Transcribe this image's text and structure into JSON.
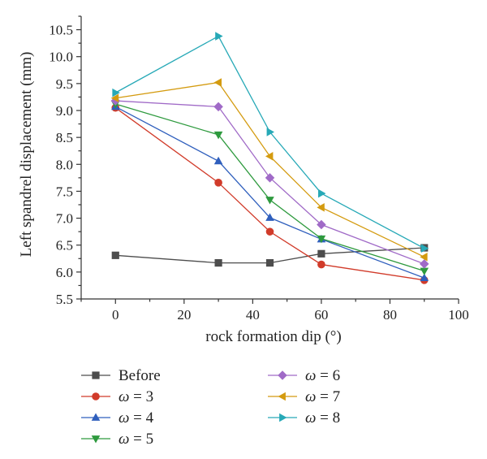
{
  "chart_data": {
    "type": "line",
    "title": "",
    "xlabel": "rock formation dip (°)",
    "ylabel": "Left spandrel displacement (mm)",
    "xlim": [
      -10,
      100
    ],
    "ylim": [
      5.5,
      10.75
    ],
    "xticks": [
      0,
      20,
      40,
      60,
      80,
      100
    ],
    "xtick_labels": [
      "0",
      "20",
      "40",
      "60",
      "80",
      "100"
    ],
    "yticks": [
      5.5,
      6.0,
      6.5,
      7.0,
      7.5,
      8.0,
      8.5,
      9.0,
      9.5,
      10.0,
      10.5
    ],
    "ytick_labels": [
      "5.5",
      "6.0",
      "6.5",
      "7.0",
      "7.5",
      "8.0",
      "8.5",
      "9.0",
      "9.5",
      "10.0",
      "10.5"
    ],
    "grid": false,
    "legend_position": "bottom",
    "x": [
      0,
      30,
      45,
      60,
      90
    ],
    "series": [
      {
        "name": "Before",
        "var": "",
        "val": "",
        "marker": "square",
        "color": "#4d4d4d",
        "values": [
          6.31,
          6.17,
          6.17,
          6.34,
          6.45
        ]
      },
      {
        "name": "ω = 3",
        "var": "ω",
        "val": " = 3",
        "marker": "circle",
        "color": "#d13b2a",
        "values": [
          9.05,
          7.66,
          6.75,
          6.14,
          5.85
        ]
      },
      {
        "name": "ω = 4",
        "var": "ω",
        "val": " = 4",
        "marker": "triangle-up",
        "color": "#2f5fbd",
        "values": [
          9.07,
          8.06,
          7.01,
          6.61,
          5.89
        ]
      },
      {
        "name": "ω = 5",
        "var": "ω",
        "val": " = 5",
        "marker": "triangle-down",
        "color": "#2e9a3e",
        "values": [
          9.12,
          8.55,
          7.34,
          6.62,
          6.02
        ]
      },
      {
        "name": "ω = 6",
        "var": "ω",
        "val": " = 6",
        "marker": "diamond",
        "color": "#a06ac7",
        "values": [
          9.18,
          9.07,
          7.75,
          6.88,
          6.15
        ]
      },
      {
        "name": "ω = 7",
        "var": "ω",
        "val": " = 7",
        "marker": "triangle-left",
        "color": "#d49b10",
        "values": [
          9.23,
          9.52,
          8.15,
          7.2,
          6.28
        ]
      },
      {
        "name": "ω = 8",
        "var": "ω",
        "val": " = 8",
        "marker": "triangle-right",
        "color": "#27a9b7",
        "values": [
          9.33,
          10.38,
          8.6,
          7.46,
          6.44
        ]
      }
    ]
  }
}
